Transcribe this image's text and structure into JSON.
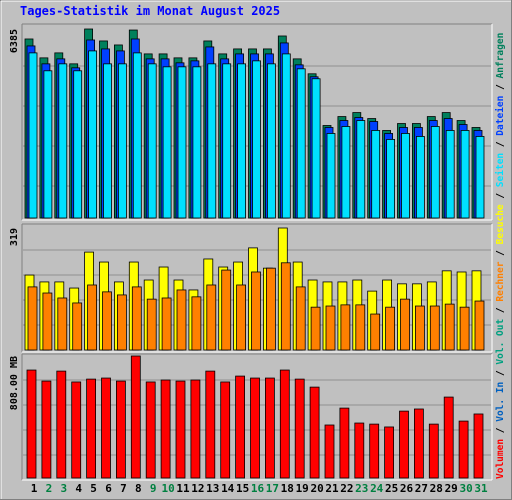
{
  "chart_data": [
    {
      "type": "bar",
      "title": "Tages-Statistik im Monat August 2025",
      "ylim": [
        0,
        6385
      ],
      "yticks": [
        6385
      ],
      "series": [
        {
          "name": "Anfragen",
          "color": "#00805c",
          "values": [
            6048,
            5410,
            5578,
            5208,
            6385,
            5981,
            5846,
            6350,
            5544,
            5544,
            5410,
            5410,
            5981,
            5544,
            5712,
            5712,
            5712,
            6149,
            5376,
            4872,
            3125,
            3427,
            3562,
            3360,
            2957,
            3192,
            3192,
            3427,
            3562,
            3293,
            3058
          ]
        },
        {
          "name": "Dateien",
          "color": "#0040ff",
          "values": [
            5813,
            5208,
            5376,
            5074,
            6014,
            5712,
            5645,
            6048,
            5376,
            5376,
            5242,
            5309,
            5779,
            5376,
            5544,
            5544,
            5544,
            5914,
            5174,
            4771,
            3058,
            3293,
            3394,
            3259,
            2856,
            3058,
            3058,
            3293,
            3360,
            3158,
            2957
          ]
        },
        {
          "name": "Seiten",
          "color": "#00e0ff",
          "values": [
            5578,
            4973,
            5208,
            4973,
            5645,
            5208,
            5208,
            5578,
            5208,
            5107,
            5107,
            5107,
            5208,
            5208,
            5208,
            5309,
            5208,
            5544,
            5040,
            4704,
            2856,
            3091,
            3293,
            2957,
            2654,
            2856,
            2755,
            3091,
            2957,
            2957,
            2755
          ]
        }
      ]
    },
    {
      "type": "bar",
      "ylim": [
        0,
        319
      ],
      "yticks": [
        319
      ],
      "series": [
        {
          "name": "Besuche",
          "color": "#ffff00",
          "values": [
            196,
            178,
            178,
            162,
            256,
            230,
            178,
            230,
            183,
            217,
            183,
            157,
            238,
            217,
            230,
            267,
            214,
            319,
            230,
            183,
            178,
            178,
            183,
            154,
            183,
            173,
            173,
            178,
            207,
            204,
            207
          ]
        },
        {
          "name": "Rechner",
          "color": "#ff8000",
          "values": [
            165,
            149,
            136,
            123,
            170,
            152,
            144,
            165,
            133,
            136,
            157,
            139,
            170,
            209,
            170,
            204,
            214,
            228,
            165,
            112,
            115,
            118,
            118,
            94,
            112,
            133,
            115,
            115,
            120,
            112,
            128
          ]
        }
      ]
    },
    {
      "type": "bar",
      "ylim": [
        0,
        808
      ],
      "yticks": [
        {
          "value": 808,
          "label": "808.00 MB"
        }
      ],
      "categories": [
        "1",
        "2",
        "3",
        "4",
        "5",
        "6",
        "7",
        "8",
        "9",
        "10",
        "11",
        "12",
        "13",
        "14",
        "15",
        "16",
        "17",
        "18",
        "19",
        "20",
        "21",
        "22",
        "23",
        "24",
        "25",
        "26",
        "27",
        "28",
        "29",
        "30",
        "31"
      ],
      "category_colors": [
        "#000000",
        "#008040",
        "#008040",
        "#000000",
        "#000000",
        "#000000",
        "#000000",
        "#000000",
        "#008040",
        "#008040",
        "#000000",
        "#000000",
        "#000000",
        "#000000",
        "#000000",
        "#008040",
        "#008040",
        "#000000",
        "#000000",
        "#000000",
        "#000000",
        "#000000",
        "#008040",
        "#008040",
        "#000000",
        "#000000",
        "#000000",
        "#000000",
        "#000000",
        "#008040",
        "#008040"
      ],
      "series": [
        {
          "name": "Volumen",
          "color": "#ff0000",
          "values": [
            715,
            642,
            708,
            636,
            655,
            662,
            642,
            808,
            636,
            649,
            642,
            649,
            708,
            636,
            675,
            662,
            662,
            715,
            655,
            602,
            351,
            463,
            364,
            357,
            338,
            443,
            457,
            357,
            536,
            377,
            424
          ]
        }
      ],
      "legend_extra": [
        {
          "name": "Vol. In",
          "color": "#0060c0"
        },
        {
          "name": "Vol. Out",
          "color": "#00a080"
        }
      ],
      "legend_separator": " / "
    }
  ]
}
